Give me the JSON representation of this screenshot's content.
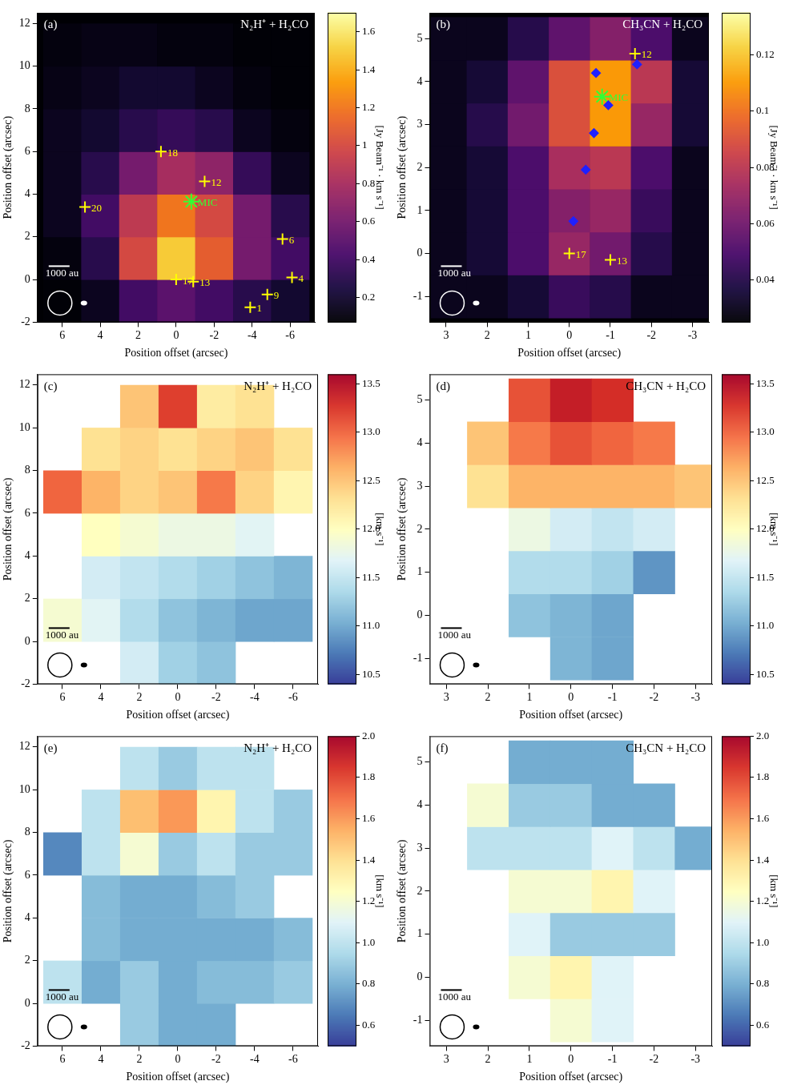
{
  "chart_data": [
    {
      "type": "heatmap",
      "panel": "(a)",
      "title": "N₂H⁺ + H₂CO",
      "x_label": "Position offset (arcsec)",
      "y_label": "Position offset (arcsec)",
      "xlim": [
        7.3,
        -7.3
      ],
      "ylim": [
        -2,
        12.5
      ],
      "xticks": [
        6,
        4,
        2,
        0,
        -2,
        -4,
        -6
      ],
      "yticks": [
        -2,
        0,
        2,
        4,
        6,
        8,
        10,
        12
      ],
      "color": "inferno",
      "scale_bar": "1000 au",
      "cells": {
        "x": [
          6,
          4,
          2,
          0,
          -2,
          -4,
          -6
        ],
        "y": [
          -1,
          1,
          3,
          5,
          7,
          9,
          11
        ],
        "values": [
          [
            0.08,
            0.15,
            0.4,
            0.5,
            0.4,
            0.3,
            0.2
          ],
          [
            0.1,
            0.3,
            1.0,
            1.5,
            1.1,
            0.6,
            0.4
          ],
          [
            0.15,
            0.4,
            0.9,
            1.2,
            1.0,
            0.6,
            0.3
          ],
          [
            0.15,
            0.3,
            0.6,
            0.8,
            0.7,
            0.35,
            0.15
          ],
          [
            0.15,
            0.2,
            0.3,
            0.35,
            0.3,
            0.15,
            0.1
          ],
          [
            0.12,
            0.15,
            0.2,
            0.2,
            0.15,
            0.1,
            0.08
          ],
          [
            0.1,
            0.12,
            0.12,
            0.1,
            0.1,
            0.08,
            0.08
          ]
        ]
      },
      "colorbar": {
        "label": "[Jy Beam⁻¹ · km s⁻¹]",
        "range": [
          0.07,
          1.7
        ],
        "ticks": [
          0.2,
          0.4,
          0.6,
          0.8,
          1.0,
          1.2,
          1.4,
          1.6
        ]
      },
      "series": [
        {
          "marker": "cross",
          "color": "#ffff00",
          "x": [
            0.8,
            -1.5,
            4.8,
            -5.6,
            -6.1,
            0,
            -0.9,
            -4.8,
            -3.9
          ],
          "y": [
            6.0,
            4.6,
            3.4,
            1.9,
            0.1,
            0,
            -0.1,
            -0.7,
            -1.3
          ],
          "labels": [
            "18",
            "12",
            "20",
            "6",
            "4",
            "17",
            "13",
            "9",
            "1"
          ]
        },
        {
          "marker": "star",
          "color": "#33ff33",
          "x": [
            -0.8
          ],
          "y": [
            3.65
          ],
          "labels": [
            "MIC"
          ]
        }
      ]
    },
    {
      "type": "heatmap",
      "panel": "(b)",
      "title": "CH₃CN + H₂CO",
      "x_label": "Position offset (arcsec)",
      "y_label": "Position offset (arcsec)",
      "xlim": [
        3.4,
        -3.4
      ],
      "ylim": [
        -1.6,
        5.6
      ],
      "xticks": [
        3,
        2,
        1,
        0,
        -1,
        -2,
        -3
      ],
      "yticks": [
        -1,
        0,
        1,
        2,
        3,
        4,
        5
      ],
      "color": "inferno",
      "scale_bar": "1000 au",
      "cells": {
        "x": [
          3,
          2,
          1,
          0,
          -1,
          -2,
          -3
        ],
        "y": [
          -1,
          0,
          1,
          2,
          3,
          4,
          5
        ],
        "values": [
          [
            0.03,
            0.03,
            0.035,
            0.045,
            0.04,
            0.03,
            0.03
          ],
          [
            0.03,
            0.035,
            0.05,
            0.07,
            0.06,
            0.04,
            0.03
          ],
          [
            0.03,
            0.035,
            0.05,
            0.065,
            0.07,
            0.045,
            0.03
          ],
          [
            0.03,
            0.035,
            0.05,
            0.075,
            0.08,
            0.05,
            0.03
          ],
          [
            0.03,
            0.04,
            0.06,
            0.09,
            0.11,
            0.07,
            0.035
          ],
          [
            0.03,
            0.035,
            0.055,
            0.09,
            0.11,
            0.08,
            0.035
          ],
          [
            0.03,
            0.03,
            0.04,
            0.055,
            0.065,
            0.05,
            0.03
          ]
        ]
      },
      "colorbar": {
        "label": "[Jy Beam⁻¹ · km s⁻¹]",
        "range": [
          0.025,
          0.135
        ],
        "ticks": [
          0.04,
          0.06,
          0.08,
          0.1,
          0.12
        ]
      },
      "series": [
        {
          "marker": "cross",
          "color": "#ffff00",
          "x": [
            -1.6,
            0,
            -1.0
          ],
          "y": [
            4.65,
            0,
            -0.15
          ],
          "labels": [
            "12",
            "17",
            "13"
          ]
        },
        {
          "marker": "diamond",
          "color": "#2020ff",
          "x": [
            -0.65,
            -0.95,
            -0.6,
            -0.4,
            -0.1,
            -1.65
          ],
          "y": [
            4.2,
            3.45,
            2.8,
            1.95,
            0.75,
            4.4
          ]
        },
        {
          "marker": "star",
          "color": "#33ff33",
          "x": [
            -0.8
          ],
          "y": [
            3.65
          ],
          "labels": [
            "MIC"
          ]
        }
      ]
    },
    {
      "type": "heatmap",
      "panel": "(c)",
      "title": "N₂H⁺ + H₂CO",
      "x_label": "Position offset (arcsec)",
      "y_label": "Position offset (arcsec)",
      "xlim": [
        7.3,
        -7.3
      ],
      "ylim": [
        -2,
        12.5
      ],
      "xticks": [
        6,
        4,
        2,
        0,
        -2,
        -4,
        -6
      ],
      "yticks": [
        -2,
        0,
        2,
        4,
        6,
        8,
        10,
        12
      ],
      "color": "RdYlBu_r",
      "scale_bar": "1000 au",
      "cells": {
        "x": [
          6,
          4,
          2,
          0,
          -2,
          -4,
          -6
        ],
        "y": [
          -1,
          1,
          3,
          5,
          7,
          9,
          11
        ],
        "values": [
          [
            null,
            null,
            11.6,
            11.3,
            11.2,
            null,
            null
          ],
          [
            11.9,
            11.7,
            11.4,
            11.2,
            11.1,
            11.0,
            11.0
          ],
          [
            null,
            11.6,
            11.5,
            11.4,
            11.3,
            11.2,
            11.1
          ],
          [
            null,
            12.0,
            11.9,
            11.8,
            11.8,
            11.7,
            null
          ],
          [
            13.0,
            12.6,
            12.4,
            12.5,
            12.9,
            12.4,
            12.1
          ],
          [
            null,
            12.3,
            12.4,
            12.3,
            12.4,
            12.5,
            12.3
          ],
          [
            null,
            null,
            12.5,
            13.2,
            12.2,
            12.3,
            null
          ]
        ]
      },
      "colorbar": {
        "label": "[km s⁻¹]",
        "range": [
          10.4,
          13.6
        ],
        "ticks": [
          10.5,
          {
            "value": 11,
            "label": "11.0"
          },
          11.5,
          {
            "value": 12,
            "label": "12.0"
          },
          12.5,
          {
            "value": 13,
            "label": "13.0"
          },
          13.5
        ]
      }
    },
    {
      "type": "heatmap",
      "panel": "(d)",
      "title": "CH₃CN + H₂CO",
      "x_label": "Position offset (arcsec)",
      "y_label": "Position offset (arcsec)",
      "xlim": [
        3.4,
        -3.4
      ],
      "ylim": [
        -1.6,
        5.6
      ],
      "xticks": [
        3,
        2,
        1,
        0,
        -1,
        -2,
        -3
      ],
      "yticks": [
        -1,
        0,
        1,
        2,
        3,
        4,
        5
      ],
      "color": "RdYlBu_r",
      "scale_bar": "1000 au",
      "cells": {
        "x": [
          3,
          2,
          1,
          0,
          -1,
          -2,
          -3
        ],
        "y": [
          -1,
          0,
          1,
          2,
          3,
          4,
          5
        ],
        "values": [
          [
            null,
            null,
            null,
            11.1,
            11.0,
            null,
            null
          ],
          [
            null,
            null,
            11.2,
            11.1,
            11.0,
            null,
            null
          ],
          [
            null,
            null,
            11.4,
            11.4,
            11.3,
            10.9,
            null
          ],
          [
            null,
            null,
            11.8,
            11.6,
            11.5,
            11.6,
            null
          ],
          [
            null,
            12.3,
            12.6,
            12.6,
            12.6,
            12.6,
            12.5
          ],
          [
            null,
            12.5,
            12.9,
            13.1,
            13.0,
            12.9,
            null
          ],
          [
            null,
            null,
            13.1,
            13.4,
            13.3,
            null,
            null
          ]
        ]
      },
      "colorbar": {
        "label": "[km s⁻¹]",
        "range": [
          10.4,
          13.6
        ],
        "ticks": [
          10.5,
          {
            "value": 11,
            "label": "11.0"
          },
          11.5,
          {
            "value": 12,
            "label": "12.0"
          },
          12.5,
          {
            "value": 13,
            "label": "13.0"
          },
          13.5
        ]
      }
    },
    {
      "type": "heatmap",
      "panel": "(e)",
      "title": "N₂H⁺ + H₂CO",
      "x_label": "Position offset (arcsec)",
      "y_label": "Position offset (arcsec)",
      "xlim": [
        7.3,
        -7.3
      ],
      "ylim": [
        -2,
        12.5
      ],
      "xticks": [
        6,
        4,
        2,
        0,
        -2,
        -4,
        -6
      ],
      "yticks": [
        -2,
        0,
        2,
        4,
        6,
        8,
        10,
        12
      ],
      "color": "RdYlBu_r",
      "scale_bar": "1000 au",
      "cells": {
        "x": [
          6,
          4,
          2,
          0,
          -2,
          -4,
          -6
        ],
        "y": [
          -1,
          1,
          3,
          5,
          7,
          9,
          11
        ],
        "values": [
          [
            null,
            null,
            0.9,
            0.8,
            0.8,
            null,
            null
          ],
          [
            1.0,
            0.8,
            0.9,
            0.8,
            0.85,
            0.85,
            0.9
          ],
          [
            null,
            0.85,
            0.8,
            0.8,
            0.8,
            0.8,
            0.85
          ],
          [
            null,
            0.85,
            0.8,
            0.8,
            0.85,
            0.9,
            null
          ],
          [
            0.7,
            1.0,
            1.2,
            0.9,
            1.0,
            0.9,
            0.9
          ],
          [
            null,
            1.0,
            1.5,
            1.6,
            1.3,
            1.0,
            0.9
          ],
          [
            null,
            null,
            1.0,
            0.9,
            1.0,
            1.0,
            null
          ]
        ]
      },
      "colorbar": {
        "label": "[km s⁻¹]",
        "range": [
          0.5,
          2.0
        ],
        "ticks": [
          0.6,
          0.8,
          {
            "value": 1,
            "label": "1.0"
          },
          1.2,
          1.4,
          1.6,
          1.8,
          {
            "value": 2,
            "label": "2.0"
          }
        ]
      }
    },
    {
      "type": "heatmap",
      "panel": "(f)",
      "title": "CH₃CN + H₂CO",
      "x_label": "Position offset (arcsec)",
      "y_label": "Position offset (arcsec)",
      "xlim": [
        3.4,
        -3.4
      ],
      "ylim": [
        -1.6,
        5.6
      ],
      "xticks": [
        3,
        2,
        1,
        0,
        -1,
        -2,
        -3
      ],
      "yticks": [
        -1,
        0,
        1,
        2,
        3,
        4,
        5
      ],
      "color": "RdYlBu_r",
      "scale_bar": "1000 au",
      "cells": {
        "x": [
          3,
          2,
          1,
          0,
          -1,
          -2,
          -3
        ],
        "y": [
          -1,
          0,
          1,
          2,
          3,
          4,
          5
        ],
        "values": [
          [
            null,
            null,
            null,
            1.2,
            1.1,
            null,
            null
          ],
          [
            null,
            null,
            1.2,
            1.3,
            1.1,
            null,
            null
          ],
          [
            null,
            null,
            1.1,
            0.9,
            0.9,
            0.9,
            null
          ],
          [
            null,
            null,
            1.2,
            1.2,
            1.3,
            1.1,
            null
          ],
          [
            null,
            1.0,
            1.0,
            1.0,
            1.1,
            1.0,
            0.8
          ],
          [
            null,
            1.2,
            0.9,
            0.9,
            0.8,
            0.8,
            null
          ],
          [
            null,
            null,
            0.8,
            0.8,
            0.8,
            null,
            null
          ]
        ]
      },
      "colorbar": {
        "label": "[km s⁻¹]",
        "range": [
          0.5,
          2.0
        ],
        "ticks": [
          0.6,
          0.8,
          {
            "value": 1,
            "label": "1.0"
          },
          1.2,
          1.4,
          1.6,
          1.8,
          {
            "value": 2,
            "label": "2.0"
          }
        ]
      }
    }
  ]
}
